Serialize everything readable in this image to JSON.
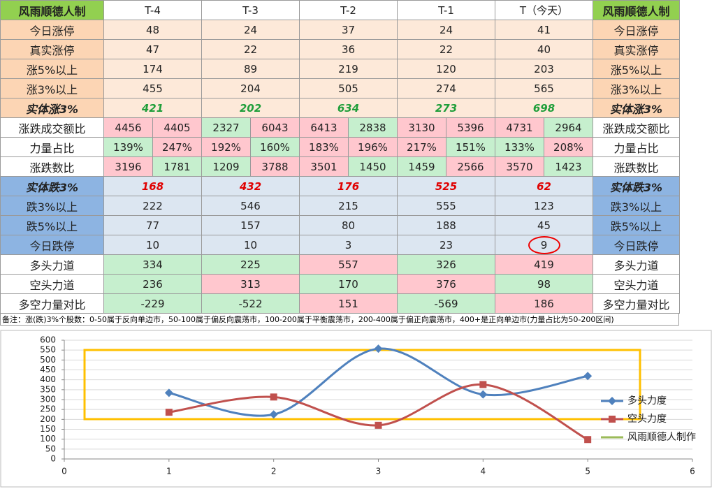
{
  "table": {
    "header": [
      "风雨顺德人制",
      "T-4",
      "T-3",
      "T-2",
      "T-1",
      "T（今天）",
      "风雨顺德人制"
    ],
    "rows": [
      {
        "label": "今日涨停",
        "cells": [
          48,
          24,
          37,
          24,
          41
        ]
      },
      {
        "label": "真实涨停",
        "cells": [
          47,
          22,
          36,
          22,
          40
        ]
      },
      {
        "label": "涨5%以上",
        "cells": [
          174,
          89,
          219,
          120,
          203
        ]
      },
      {
        "label": "涨3%以上",
        "cells": [
          455,
          204,
          505,
          274,
          565
        ]
      },
      {
        "label": "实体涨3%",
        "cells": [
          421,
          202,
          634,
          273,
          698
        ]
      },
      {
        "label": "涨跌成交额比",
        "cells": [
          4456,
          4405,
          2327,
          6043,
          6413,
          2838,
          3130,
          5396,
          4731,
          2964
        ]
      },
      {
        "label": "力量占比",
        "cells": [
          "139%",
          "247%",
          "192%",
          "160%",
          "183%",
          "196%",
          "217%",
          "151%",
          "133%",
          "208%"
        ]
      },
      {
        "label": "涨跌数比",
        "cells": [
          3196,
          1781,
          1209,
          3788,
          3501,
          1450,
          1459,
          2566,
          3570,
          1423
        ]
      },
      {
        "label": "实体跌3%",
        "cells": [
          168,
          432,
          176,
          525,
          62
        ]
      },
      {
        "label": "跌3%以上",
        "cells": [
          222,
          546,
          215,
          555,
          123
        ]
      },
      {
        "label": "跌5%以上",
        "cells": [
          77,
          157,
          80,
          188,
          45
        ]
      },
      {
        "label": "今日跌停",
        "cells": [
          10,
          10,
          3,
          23,
          9
        ]
      },
      {
        "label": "多头力道",
        "cells": [
          334,
          225,
          557,
          326,
          419
        ]
      },
      {
        "label": "空头力道",
        "cells": [
          236,
          313,
          170,
          376,
          98
        ]
      },
      {
        "label": "多空力量对比",
        "cells": [
          -229,
          -522,
          151,
          -569,
          186
        ]
      }
    ],
    "note": "备注：涨(跌)3%个股数：0-50属于反向单边市，50-100属于偏反向震荡市，100-200属于平衡震荡市，200-400属于偏正向震荡市，400+是正向单边市(力量占比为50-200区间)"
  },
  "chart_data": {
    "type": "line",
    "x": [
      1,
      2,
      3,
      4,
      5
    ],
    "series": [
      {
        "name": "多头力度",
        "color": "#4f81bd",
        "values": [
          334,
          225,
          557,
          326,
          419
        ]
      },
      {
        "name": "空头力度",
        "color": "#c0504d",
        "values": [
          236,
          313,
          170,
          376,
          98
        ]
      },
      {
        "name": "风雨顺德人制作",
        "color": "#9bbb59",
        "values": [
          null,
          null,
          null,
          null,
          null
        ]
      }
    ],
    "xlim": [
      0,
      6
    ],
    "xticks": [
      0,
      1,
      2,
      3,
      4,
      5,
      6
    ],
    "ylim": [
      0,
      600
    ],
    "yticks": [
      0,
      50,
      100,
      150,
      200,
      250,
      300,
      350,
      400,
      450,
      500,
      550,
      600
    ],
    "grid": true,
    "legend": "right"
  }
}
